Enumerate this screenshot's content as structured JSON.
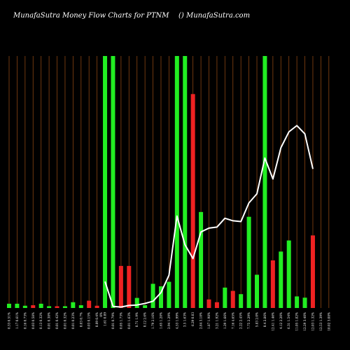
{
  "chart_data": {
    "type": "bar",
    "title_left": "MunafaSutra  Money Flow  Charts for PTNM",
    "title_right": "() MunafaSutra.com",
    "colors": {
      "background": "#000000",
      "grid": "#8B4513",
      "up": "#22ee22",
      "down": "#ee2222",
      "line": "#ffffff"
    },
    "grid": true,
    "ylim": [
      0,
      100
    ],
    "categories": [
      "0.33 0.51%",
      "1.17 0.61%",
      "0.16 0.73%",
      "0.03 0.58%",
      "0.13 0.32%",
      "0.01 0.38%",
      "0.01 0.42%",
      "0.01 0.32%",
      "0.01 0.23%",
      "0.03 0.7%",
      "0.03 0.15%",
      "0.09 0.4%",
      "1.61 0.09",
      "0.01 0.79%",
      "0.05 1.73%",
      "0.01 1.63%",
      "0.71 1.9%",
      "0.12 2.6%",
      "1.79 2.16%",
      "1.65 1.28%",
      "2.94 1.29%",
      "4.53 1.99%",
      "3.5 1.63%",
      "6.29 0.03",
      "2.84 3.18%",
      "1.87 1.98%",
      "3.21 1.92%",
      "1.29 1.66%",
      "7.16 4.65%",
      "2.22 2.45%",
      "7.75 2.29%",
      "5.83 2.0%",
      "0.4 2.86%",
      "12.41 1.46%",
      "4.12 2.20%",
      "6.31 1.54%",
      "11.05 1.82%",
      "12.29 3.40%",
      "12.03 1.32%",
      "12.53 1.39%",
      "10.02 3.08%"
    ],
    "extra_tick_label": "0%",
    "series": [
      {
        "kind": "bars",
        "values": [
          1.7,
          1.7,
          0.9,
          1.1,
          1.7,
          0.7,
          0.7,
          0.7,
          2.3,
          1.1,
          2.9,
          0.9,
          100,
          100,
          16.7,
          16.7,
          4.0,
          1.1,
          9.6,
          8.6,
          10.4,
          100,
          100,
          84.9,
          38.1,
          3.4,
          2.3,
          8.1,
          6.8,
          5.5,
          36.2,
          13.2,
          100,
          18.9,
          22.4,
          26.8,
          4.6,
          4.1,
          28.8,
          0,
          0
        ],
        "directions": [
          "up",
          "up",
          "up",
          "down",
          "up",
          "up",
          "down",
          "up",
          "up",
          "up",
          "down",
          "down",
          "up",
          "up",
          "down",
          "down",
          "up",
          "up",
          "up",
          "up",
          "up",
          "up",
          "up",
          "down",
          "up",
          "down",
          "down",
          "up",
          "down",
          "up",
          "up",
          "up",
          "up",
          "down",
          "up",
          "up",
          "up",
          "up",
          "down",
          "up",
          "up"
        ]
      },
      {
        "kind": "line",
        "values": [
          null,
          null,
          null,
          null,
          null,
          null,
          null,
          null,
          null,
          null,
          null,
          null,
          10.5,
          0.6,
          0.4,
          1.0,
          1.2,
          1.8,
          2.7,
          6.1,
          13.0,
          36.5,
          25.1,
          19.6,
          30.2,
          31.7,
          32.1,
          35.6,
          34.6,
          34.3,
          41.7,
          45.3,
          59.5,
          51.2,
          63.6,
          69.9,
          72.4,
          69.1,
          55.2,
          null,
          null
        ]
      }
    ]
  }
}
